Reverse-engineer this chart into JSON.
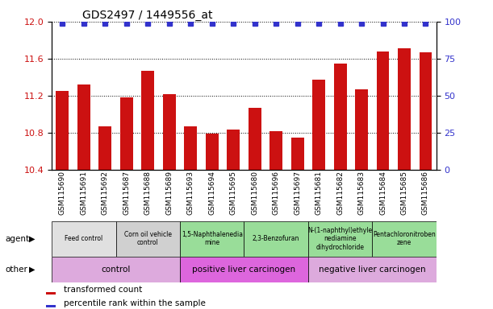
{
  "title": "GDS2497 / 1449556_at",
  "samples": [
    "GSM115690",
    "GSM115691",
    "GSM115692",
    "GSM115687",
    "GSM115688",
    "GSM115689",
    "GSM115693",
    "GSM115694",
    "GSM115695",
    "GSM115680",
    "GSM115696",
    "GSM115697",
    "GSM115681",
    "GSM115682",
    "GSM115683",
    "GSM115684",
    "GSM115685",
    "GSM115686"
  ],
  "bar_values": [
    11.25,
    11.32,
    10.87,
    11.18,
    11.47,
    11.22,
    10.87,
    10.79,
    10.84,
    11.07,
    10.82,
    10.75,
    11.37,
    11.55,
    11.27,
    11.68,
    11.71,
    11.67
  ],
  "ylim_left": [
    10.4,
    12.0
  ],
  "ylim_right": [
    0,
    100
  ],
  "bar_color": "#cc1111",
  "percentile_color": "#3333cc",
  "agent_groups": [
    {
      "label": "Feed control",
      "start": 0,
      "end": 3,
      "color": "#e0e0e0"
    },
    {
      "label": "Corn oil vehicle\ncontrol",
      "start": 3,
      "end": 6,
      "color": "#d0d0d0"
    },
    {
      "label": "1,5-Naphthalenedia\nmine",
      "start": 6,
      "end": 9,
      "color": "#99dd99"
    },
    {
      "label": "2,3-Benzofuran",
      "start": 9,
      "end": 12,
      "color": "#99dd99"
    },
    {
      "label": "N-(1-naphthyl)ethyle\nnediamine\ndihydrochloride",
      "start": 12,
      "end": 15,
      "color": "#99dd99"
    },
    {
      "label": "Pentachloronitroben\nzene",
      "start": 15,
      "end": 18,
      "color": "#99dd99"
    }
  ],
  "other_groups": [
    {
      "label": "control",
      "start": 0,
      "end": 6,
      "color": "#ddaadd"
    },
    {
      "label": "positive liver carcinogen",
      "start": 6,
      "end": 12,
      "color": "#dd66dd"
    },
    {
      "label": "negative liver carcinogen",
      "start": 12,
      "end": 18,
      "color": "#ddaadd"
    }
  ],
  "yticks_left": [
    10.4,
    10.8,
    11.2,
    11.6,
    12.0
  ],
  "yticks_right": [
    0,
    25,
    50,
    75,
    100
  ],
  "legend_bar": "transformed count",
  "legend_pct": "percentile rank within the sample"
}
